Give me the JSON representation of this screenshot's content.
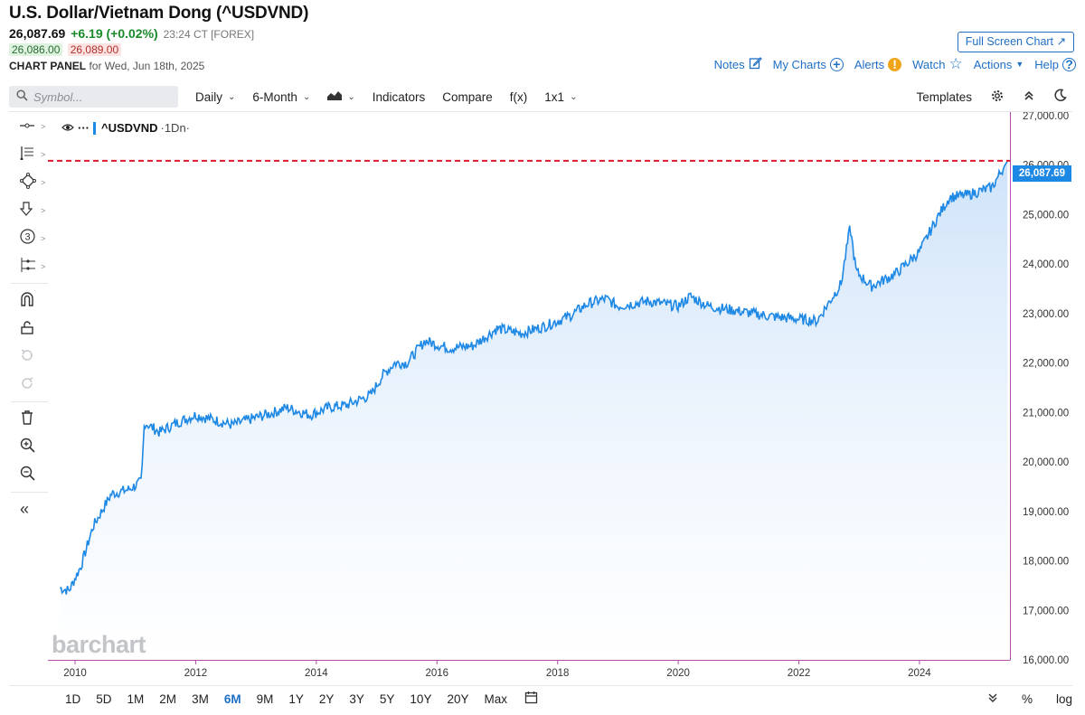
{
  "header": {
    "title": "U.S. Dollar/Vietnam Dong (^USDVND)",
    "last": "26,087.69",
    "change": "+6.19 (+0.02%)",
    "time": "23:24 CT [FOREX]",
    "bid": "26,086.00",
    "ask": "26,089.00",
    "panel_label": "CHART PANEL",
    "panel_date": "for Wed, Jun 18th, 2025",
    "fullscreen": "Full Screen Chart"
  },
  "links": {
    "notes": "Notes",
    "mycharts": "My Charts",
    "alerts": "Alerts",
    "watch": "Watch",
    "actions": "Actions",
    "help": "Help"
  },
  "toolbar": {
    "symbol_placeholder": "Symbol...",
    "interval": "Daily",
    "period": "6-Month",
    "indicators": "Indicators",
    "compare": "Compare",
    "fx": "f(x)",
    "layout": "1x1",
    "templates": "Templates"
  },
  "legend": {
    "symbol": "^USDVND",
    "interval": "·1Dn·"
  },
  "price_tag": "26,087.69",
  "watermark": "barchart",
  "ranges": [
    "1D",
    "5D",
    "1M",
    "2M",
    "3M",
    "6M",
    "9M",
    "1Y",
    "2Y",
    "3Y",
    "5Y",
    "10Y",
    "20Y",
    "Max"
  ],
  "active_range": "6M",
  "bottom_right": {
    "percent": "%",
    "log": "log"
  },
  "colors": {
    "line": "#1e88e5",
    "area_top": "#cfe3f9",
    "price_line": "#e0182d",
    "accent": "#1f6fc5",
    "axis": "#b24ea8"
  },
  "chart_data": {
    "type": "area",
    "x": [
      2009.75,
      2009.9,
      2010.1,
      2010.3,
      2010.6,
      2010.9,
      2011.1,
      2011.15,
      2011.4,
      2011.7,
      2012.0,
      2012.3,
      2012.6,
      2013.0,
      2013.3,
      2013.5,
      2013.9,
      2014.2,
      2014.5,
      2014.9,
      2015.1,
      2015.3,
      2015.5,
      2015.8,
      2016.2,
      2016.6,
      2017.0,
      2017.4,
      2017.8,
      2018.2,
      2018.5,
      2018.8,
      2019.0,
      2019.5,
      2020.0,
      2020.2,
      2020.5,
      2021.0,
      2021.5,
      2021.9,
      2022.3,
      2022.7,
      2022.85,
      2022.95,
      2023.2,
      2023.6,
      2024.0,
      2024.3,
      2024.5,
      2024.8,
      2025.2,
      2025.46
    ],
    "values": [
      17450,
      17400,
      17900,
      18700,
      19350,
      19450,
      19600,
      20800,
      20600,
      20800,
      20950,
      20850,
      20750,
      20900,
      21000,
      21100,
      20950,
      21100,
      21150,
      21350,
      21750,
      22000,
      22000,
      22450,
      22300,
      22350,
      22700,
      22600,
      22750,
      22950,
      23200,
      23300,
      23150,
      23250,
      23150,
      23350,
      23150,
      23050,
      22950,
      22900,
      22850,
      23600,
      24750,
      23850,
      23550,
      23800,
      24250,
      24950,
      25350,
      25400,
      25550,
      26087.69
    ],
    "ylim": [
      16000,
      27000
    ],
    "y_ticks": [
      "27,000.00",
      "26,000.00",
      "25,000.00",
      "24,000.00",
      "23,000.00",
      "22,000.00",
      "21,000.00",
      "20,000.00",
      "19,000.00",
      "18,000.00",
      "17,000.00",
      "16,000.00"
    ],
    "x_ticks": [
      "2010",
      "2012",
      "2014",
      "2016",
      "2018",
      "2020",
      "2022",
      "2024"
    ],
    "last_price": 26087.69,
    "grid": false
  }
}
